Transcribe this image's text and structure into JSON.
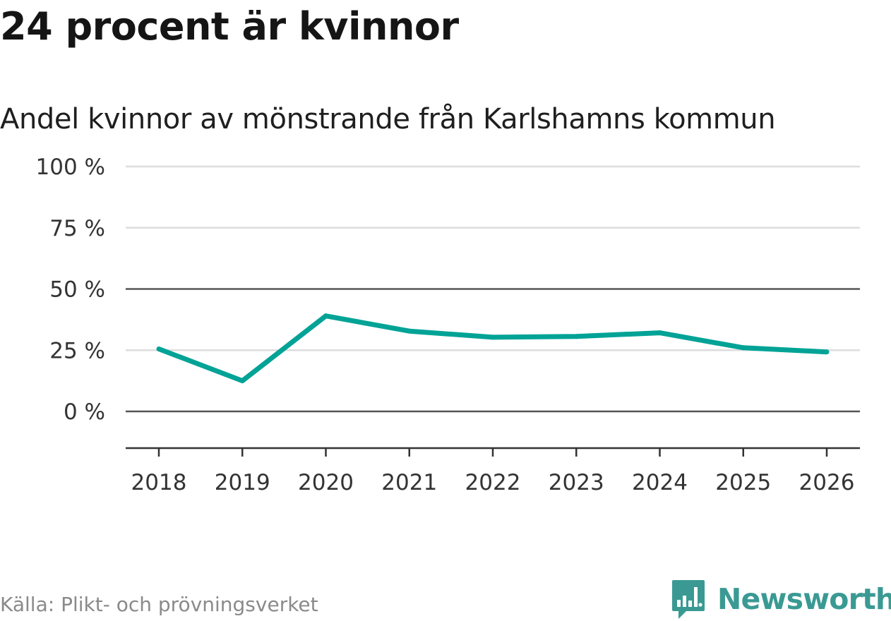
{
  "headline": "24 procent är kvinnor",
  "chart_data": {
    "type": "line",
    "title": "24 procent är kvinnor",
    "subtitle": "Andel kvinnor av mönstrande från Karlshamns kommun",
    "xlabel": "",
    "ylabel": "",
    "categories": [
      "2018",
      "2019",
      "2020",
      "2021",
      "2022",
      "2023",
      "2024",
      "2025",
      "2026"
    ],
    "series": [
      {
        "name": "Andel kvinnor",
        "values": [
          25.5,
          12.5,
          39.0,
          32.8,
          30.3,
          30.6,
          32.1,
          26.0,
          24.3
        ],
        "color": "#00a396"
      }
    ],
    "ylim": [
      -15,
      100
    ],
    "yticks": [
      0,
      25,
      50,
      75,
      100
    ],
    "ytick_labels": [
      "0 %",
      "25 %",
      "50 %",
      "75 %",
      "100 %"
    ],
    "grid": true,
    "legend": "none"
  },
  "source": "Källa: Plikt- och prövningsverket",
  "brand": {
    "name": "Newsworthy",
    "color": "#3a9a93"
  }
}
